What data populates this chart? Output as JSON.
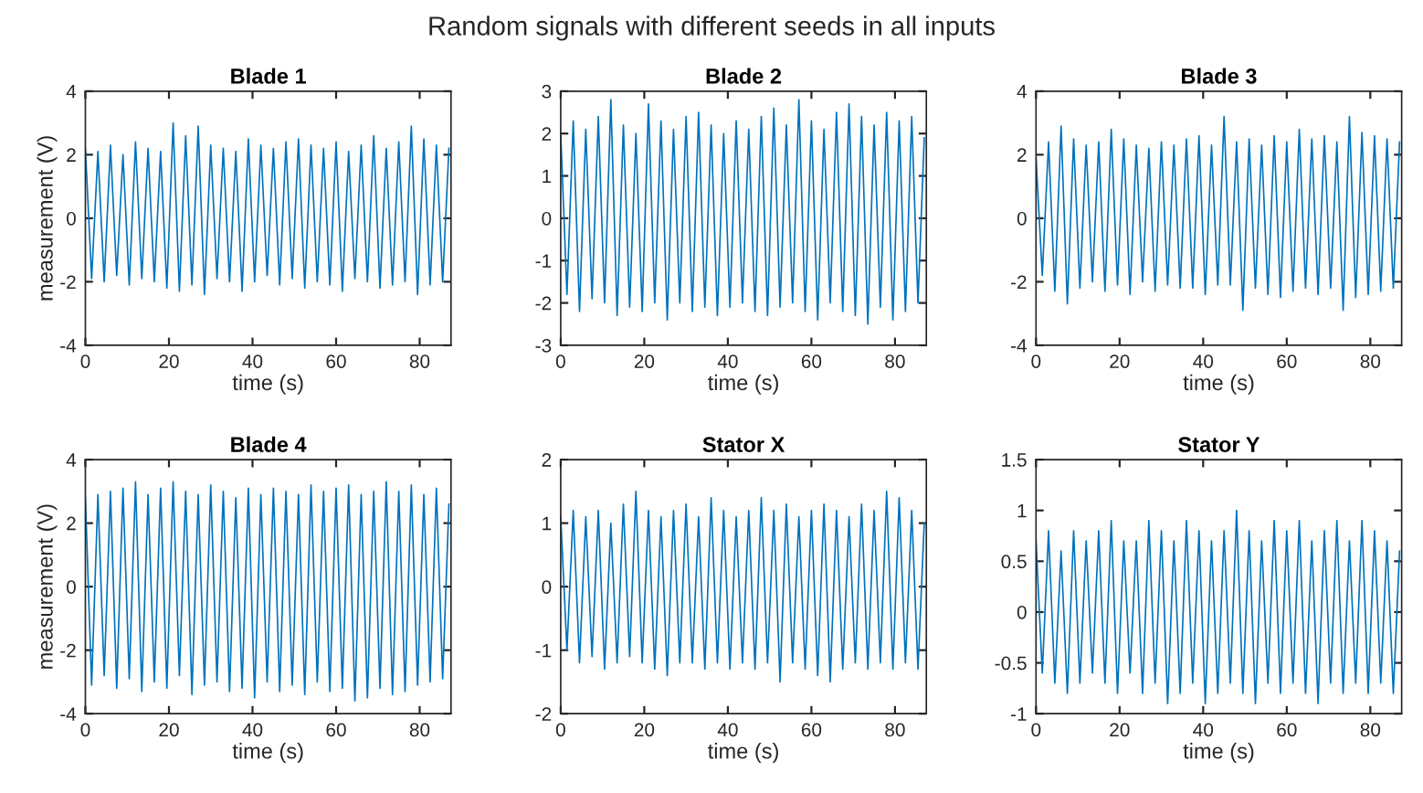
{
  "chart_data": [
    {
      "type": "other",
      "title": "Random signals with different seeds in all inputs"
    },
    {
      "type": "line",
      "title": "Blade 1",
      "xlabel": "time (s)",
      "ylabel": "measurement (V)",
      "xlim": [
        0,
        87.5
      ],
      "ylim": [
        -4,
        4
      ],
      "xticks": [
        0,
        20,
        40,
        60,
        80
      ],
      "yticks": [
        -4,
        -2,
        0,
        2,
        4
      ],
      "x": [
        0,
        1.5,
        3,
        4.5,
        6,
        7.5,
        9,
        10.5,
        12,
        13.5,
        15,
        16.5,
        18,
        19.5,
        21,
        22.5,
        24,
        25.5,
        27,
        28.5,
        30,
        31.5,
        33,
        34.5,
        36,
        37.5,
        39,
        40.5,
        42,
        43.5,
        45,
        46.5,
        48,
        49.5,
        51,
        52.5,
        54,
        55.5,
        57,
        58.5,
        60,
        61.5,
        63,
        64.5,
        66,
        67.5,
        69,
        70.5,
        72,
        73.5,
        75,
        76.5,
        78,
        79.5,
        81,
        82.5,
        84,
        85.5,
        87
      ],
      "series": [
        {
          "color": "#0072bd",
          "values": [
            2.2,
            -1.9,
            2.1,
            -2.0,
            2.3,
            -1.8,
            2.0,
            -2.1,
            2.4,
            -1.9,
            2.2,
            -2.0,
            2.1,
            -2.2,
            3.0,
            -2.3,
            2.6,
            -2.1,
            2.9,
            -2.4,
            2.3,
            -1.9,
            2.2,
            -2.0,
            2.1,
            -2.3,
            2.5,
            -2.0,
            2.3,
            -1.8,
            2.2,
            -2.1,
            2.4,
            -1.9,
            2.5,
            -2.2,
            2.3,
            -2.0,
            2.2,
            -2.1,
            2.4,
            -2.3,
            2.1,
            -1.9,
            2.3,
            -2.0,
            2.6,
            -2.2,
            2.2,
            -2.1,
            2.4,
            -2.0,
            2.9,
            -2.4,
            2.5,
            -2.1,
            2.3,
            -2.0,
            2.2
          ]
        }
      ]
    },
    {
      "type": "line",
      "title": "Blade 2",
      "xlabel": "time (s)",
      "xlim": [
        0,
        87.5
      ],
      "ylim": [
        -3,
        3
      ],
      "xticks": [
        0,
        20,
        40,
        60,
        80
      ],
      "yticks": [
        -3,
        -2,
        -1,
        0,
        1,
        2,
        3
      ],
      "x": [
        0,
        1.5,
        3,
        4.5,
        6,
        7.5,
        9,
        10.5,
        12,
        13.5,
        15,
        16.5,
        18,
        19.5,
        21,
        22.5,
        24,
        25.5,
        27,
        28.5,
        30,
        31.5,
        33,
        34.5,
        36,
        37.5,
        39,
        40.5,
        42,
        43.5,
        45,
        46.5,
        48,
        49.5,
        51,
        52.5,
        54,
        55.5,
        57,
        58.5,
        60,
        61.5,
        63,
        64.5,
        66,
        67.5,
        69,
        70.5,
        72,
        73.5,
        75,
        76.5,
        78,
        79.5,
        81,
        82.5,
        84,
        85.5,
        87
      ],
      "series": [
        {
          "color": "#0072bd",
          "values": [
            2.0,
            -1.8,
            2.3,
            -2.2,
            2.1,
            -1.9,
            2.4,
            -2.0,
            2.8,
            -2.3,
            2.2,
            -2.1,
            2.0,
            -2.2,
            2.7,
            -2.0,
            2.3,
            -2.4,
            2.1,
            -2.0,
            2.4,
            -2.2,
            2.5,
            -2.1,
            2.2,
            -2.3,
            2.0,
            -2.1,
            2.3,
            -2.0,
            2.1,
            -2.2,
            2.4,
            -2.3,
            2.6,
            -2.1,
            2.2,
            -2.0,
            2.8,
            -2.2,
            2.3,
            -2.4,
            2.1,
            -2.0,
            2.5,
            -2.2,
            2.7,
            -2.3,
            2.4,
            -2.5,
            2.2,
            -2.1,
            2.5,
            -2.4,
            2.3,
            -2.2,
            2.4,
            -2.0,
            1.9
          ]
        }
      ]
    },
    {
      "type": "line",
      "title": "Blade 3",
      "xlabel": "time (s)",
      "xlim": [
        0,
        87.5
      ],
      "ylim": [
        -4,
        4
      ],
      "xticks": [
        0,
        20,
        40,
        60,
        80
      ],
      "yticks": [
        -4,
        -2,
        0,
        2,
        4
      ],
      "x": [
        0,
        1.5,
        3,
        4.5,
        6,
        7.5,
        9,
        10.5,
        12,
        13.5,
        15,
        16.5,
        18,
        19.5,
        21,
        22.5,
        24,
        25.5,
        27,
        28.5,
        30,
        31.5,
        33,
        34.5,
        36,
        37.5,
        39,
        40.5,
        42,
        43.5,
        45,
        46.5,
        48,
        49.5,
        51,
        52.5,
        54,
        55.5,
        57,
        58.5,
        60,
        61.5,
        63,
        64.5,
        66,
        67.5,
        69,
        70.5,
        72,
        73.5,
        75,
        76.5,
        78,
        79.5,
        81,
        82.5,
        84,
        85.5,
        87
      ],
      "series": [
        {
          "color": "#0072bd",
          "values": [
            1.9,
            -1.8,
            2.4,
            -2.3,
            2.9,
            -2.7,
            2.5,
            -2.2,
            2.3,
            -2.0,
            2.4,
            -2.3,
            2.8,
            -2.1,
            2.5,
            -2.4,
            2.3,
            -2.0,
            2.2,
            -2.3,
            2.4,
            -2.1,
            2.3,
            -2.2,
            2.5,
            -2.2,
            2.6,
            -2.4,
            2.3,
            -2.1,
            3.2,
            -2.1,
            2.4,
            -2.9,
            2.5,
            -2.2,
            2.3,
            -2.4,
            2.6,
            -2.5,
            2.4,
            -2.3,
            2.8,
            -2.2,
            2.5,
            -2.4,
            2.6,
            -2.2,
            2.4,
            -2.9,
            3.2,
            -2.5,
            2.7,
            -2.4,
            2.6,
            -2.3,
            2.5,
            -2.2,
            2.4
          ]
        }
      ]
    },
    {
      "type": "line",
      "title": "Blade 4",
      "xlabel": "time (s)",
      "ylabel": "measurement (V)",
      "xlim": [
        0,
        87.5
      ],
      "ylim": [
        -4,
        4
      ],
      "xticks": [
        0,
        20,
        40,
        60,
        80
      ],
      "yticks": [
        -4,
        -2,
        0,
        2,
        4
      ],
      "x": [
        0,
        1.5,
        3,
        4.5,
        6,
        7.5,
        9,
        10.5,
        12,
        13.5,
        15,
        16.5,
        18,
        19.5,
        21,
        22.5,
        24,
        25.5,
        27,
        28.5,
        30,
        31.5,
        33,
        34.5,
        36,
        37.5,
        39,
        40.5,
        42,
        43.5,
        45,
        46.5,
        48,
        49.5,
        51,
        52.5,
        54,
        55.5,
        57,
        58.5,
        60,
        61.5,
        63,
        64.5,
        66,
        67.5,
        69,
        70.5,
        72,
        73.5,
        75,
        76.5,
        78,
        79.5,
        81,
        82.5,
        84,
        85.5,
        87
      ],
      "series": [
        {
          "color": "#0072bd",
          "values": [
            2.8,
            -3.1,
            2.9,
            -2.8,
            3.0,
            -3.2,
            3.1,
            -2.9,
            3.3,
            -3.3,
            2.9,
            -3.0,
            3.1,
            -3.2,
            3.3,
            -2.8,
            3.0,
            -3.4,
            2.9,
            -3.1,
            3.2,
            -3.0,
            3.0,
            -3.3,
            2.8,
            -3.2,
            3.1,
            -3.5,
            2.9,
            -3.0,
            3.1,
            -3.3,
            3.0,
            -3.1,
            2.9,
            -3.4,
            3.2,
            -3.0,
            3.0,
            -3.3,
            3.1,
            -3.2,
            3.2,
            -3.6,
            2.9,
            -3.5,
            3.0,
            -3.2,
            3.3,
            -3.4,
            3.0,
            -3.3,
            3.2,
            -3.1,
            2.9,
            -3.0,
            3.1,
            -2.9,
            2.6
          ]
        }
      ]
    },
    {
      "type": "line",
      "title": "Stator X",
      "xlabel": "time (s)",
      "xlim": [
        0,
        87.5
      ],
      "ylim": [
        -2,
        2
      ],
      "xticks": [
        0,
        20,
        40,
        60,
        80
      ],
      "yticks": [
        -2,
        -1,
        0,
        1,
        2
      ],
      "x": [
        0,
        1.5,
        3,
        4.5,
        6,
        7.5,
        9,
        10.5,
        12,
        13.5,
        15,
        16.5,
        18,
        19.5,
        21,
        22.5,
        24,
        25.5,
        27,
        28.5,
        30,
        31.5,
        33,
        34.5,
        36,
        37.5,
        39,
        40.5,
        42,
        43.5,
        45,
        46.5,
        48,
        49.5,
        51,
        52.5,
        54,
        55.5,
        57,
        58.5,
        60,
        61.5,
        63,
        64.5,
        66,
        67.5,
        69,
        70.5,
        72,
        73.5,
        75,
        76.5,
        78,
        79.5,
        81,
        82.5,
        84,
        85.5,
        87
      ],
      "series": [
        {
          "color": "#0072bd",
          "values": [
            1.1,
            -1.0,
            1.2,
            -1.2,
            1.1,
            -1.1,
            1.2,
            -1.3,
            1.0,
            -1.2,
            1.3,
            -1.1,
            1.5,
            -1.2,
            1.2,
            -1.3,
            1.1,
            -1.4,
            1.2,
            -1.2,
            1.3,
            -1.2,
            1.1,
            -1.3,
            1.4,
            -1.2,
            1.2,
            -1.3,
            1.1,
            -1.2,
            1.2,
            -1.3,
            1.4,
            -1.2,
            1.2,
            -1.5,
            1.3,
            -1.2,
            1.1,
            -1.3,
            1.2,
            -1.4,
            1.3,
            -1.5,
            1.2,
            -1.3,
            1.1,
            -1.2,
            1.3,
            -1.3,
            1.2,
            -1.2,
            1.5,
            -1.3,
            1.4,
            -1.2,
            1.2,
            -1.3,
            1.0
          ]
        }
      ]
    },
    {
      "type": "line",
      "title": "Stator Y",
      "xlabel": "time (s)",
      "xlim": [
        0,
        87.5
      ],
      "ylim": [
        -1,
        1.5
      ],
      "xticks": [
        0,
        20,
        40,
        60,
        80
      ],
      "yticks": [
        -1,
        -0.5,
        0,
        0.5,
        1,
        1.5
      ],
      "x": [
        0,
        1.5,
        3,
        4.5,
        6,
        7.5,
        9,
        10.5,
        12,
        13.5,
        15,
        16.5,
        18,
        19.5,
        21,
        22.5,
        24,
        25.5,
        27,
        28.5,
        30,
        31.5,
        33,
        34.5,
        36,
        37.5,
        39,
        40.5,
        42,
        43.5,
        45,
        46.5,
        48,
        49.5,
        51,
        52.5,
        54,
        55.5,
        57,
        58.5,
        60,
        61.5,
        63,
        64.5,
        66,
        67.5,
        69,
        70.5,
        72,
        73.5,
        75,
        76.5,
        78,
        79.5,
        81,
        82.5,
        84,
        85.5,
        87
      ],
      "series": [
        {
          "color": "#0072bd",
          "values": [
            0.7,
            -0.6,
            0.8,
            -0.7,
            0.6,
            -0.8,
            0.8,
            -0.7,
            0.7,
            -0.6,
            0.8,
            -0.7,
            0.9,
            -0.8,
            0.7,
            -0.6,
            0.7,
            -0.8,
            0.9,
            -0.7,
            0.8,
            -0.9,
            0.7,
            -0.8,
            0.9,
            -0.7,
            0.8,
            -0.9,
            0.7,
            -0.8,
            0.8,
            -0.7,
            1.0,
            -0.8,
            0.8,
            -0.9,
            0.7,
            -0.7,
            0.9,
            -0.8,
            0.8,
            -0.7,
            0.9,
            -0.8,
            0.7,
            -0.9,
            0.8,
            -0.7,
            0.9,
            -0.8,
            0.7,
            -0.7,
            0.9,
            -0.8,
            0.8,
            -0.7,
            0.7,
            -0.8,
            0.6
          ]
        }
      ]
    }
  ]
}
